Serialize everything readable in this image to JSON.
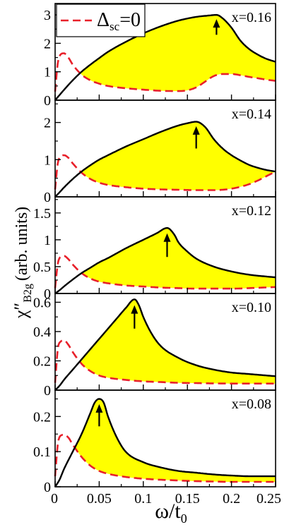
{
  "chart_data": {
    "type": "line",
    "ylabel_main": "χ″",
    "ylabel_sub": "B2g",
    "ylabel_units": "(arb. units)",
    "xlabel_main": "ω/t",
    "xlabel_sub": "0",
    "xlim": [
      0,
      0.25
    ],
    "x_ticks": [
      0,
      0.05,
      0.1,
      0.15,
      0.2,
      0.25
    ],
    "x_tick_labels": [
      "0",
      "0.05",
      "0.1",
      "0.15",
      "0.2",
      "0.25"
    ],
    "legend": {
      "placement": "top-left",
      "label_main": "Δ",
      "label_sub": "sc",
      "label_tail": "=0"
    },
    "colors": {
      "sc": "#000000",
      "normal": "#e8202a",
      "fill": "#ffff00"
    },
    "panels": [
      {
        "label": "x=0.16",
        "ylim": [
          0,
          3.4
        ],
        "y_ticks": [
          0,
          1,
          2,
          3
        ],
        "y_tick_labels": [
          "0",
          "1",
          "2",
          "3"
        ],
        "peak": [
          0.183,
          3.0
        ],
        "arrow": {
          "x": 0.183,
          "y_top": 2.85,
          "y_bottom": 2.3
        },
        "series": [
          {
            "name": "sc",
            "x": [
              0,
              0.005,
              0.01,
              0.02,
              0.03,
              0.04,
              0.05,
              0.06,
              0.08,
              0.1,
              0.12,
              0.14,
              0.16,
              0.175,
              0.183,
              0.19,
              0.2,
              0.21,
              0.22,
              0.23,
              0.24,
              0.25
            ],
            "y": [
              0,
              0.18,
              0.36,
              0.7,
              1.0,
              1.25,
              1.48,
              1.7,
              2.05,
              2.35,
              2.6,
              2.8,
              2.93,
              2.98,
              3.0,
              2.88,
              2.55,
              2.1,
              1.8,
              1.6,
              1.45,
              1.35
            ]
          },
          {
            "name": "Δsc=0",
            "x": [
              0,
              0.003,
              0.006,
              0.01,
              0.015,
              0.02,
              0.03,
              0.04,
              0.05,
              0.06,
              0.08,
              0.1,
              0.12,
              0.14,
              0.15,
              0.16,
              0.17,
              0.18,
              0.19,
              0.2,
              0.21,
              0.22,
              0.23,
              0.24,
              0.25
            ],
            "y": [
              0.3,
              1.3,
              1.6,
              1.65,
              1.5,
              1.25,
              0.9,
              0.7,
              0.58,
              0.5,
              0.42,
              0.37,
              0.33,
              0.32,
              0.35,
              0.45,
              0.65,
              0.85,
              0.92,
              0.92,
              0.88,
              0.82,
              0.77,
              0.72,
              0.68
            ]
          }
        ]
      },
      {
        "label": "x=0.14",
        "ylim": [
          0,
          2.6
        ],
        "y_ticks": [
          0,
          1,
          2
        ],
        "y_tick_labels": [
          "0",
          "1",
          "2"
        ],
        "peak": [
          0.16,
          2.02
        ],
        "arrow": {
          "x": 0.16,
          "y_top": 1.9,
          "y_bottom": 1.3
        },
        "series": [
          {
            "name": "sc",
            "x": [
              0,
              0.005,
              0.01,
              0.02,
              0.03,
              0.04,
              0.05,
              0.06,
              0.08,
              0.1,
              0.12,
              0.14,
              0.15,
              0.16,
              0.17,
              0.18,
              0.19,
              0.2,
              0.21,
              0.22,
              0.23,
              0.24,
              0.25
            ],
            "y": [
              0,
              0.12,
              0.25,
              0.48,
              0.68,
              0.85,
              1.0,
              1.12,
              1.35,
              1.55,
              1.75,
              1.92,
              1.98,
              2.02,
              1.88,
              1.55,
              1.3,
              1.12,
              0.98,
              0.86,
              0.78,
              0.72,
              0.68
            ]
          },
          {
            "name": "Δsc=0",
            "x": [
              0,
              0.003,
              0.006,
              0.01,
              0.015,
              0.02,
              0.03,
              0.04,
              0.05,
              0.06,
              0.08,
              0.1,
              0.12,
              0.14,
              0.16,
              0.18,
              0.19,
              0.2,
              0.21,
              0.22,
              0.23,
              0.24,
              0.25
            ],
            "y": [
              0.2,
              0.9,
              1.08,
              1.12,
              1.05,
              0.9,
              0.65,
              0.48,
              0.38,
              0.32,
              0.26,
              0.22,
              0.2,
              0.19,
              0.18,
              0.18,
              0.19,
              0.22,
              0.27,
              0.34,
              0.44,
              0.56,
              0.68
            ]
          }
        ]
      },
      {
        "label": "x=0.12",
        "ylim": [
          0,
          1.8
        ],
        "y_ticks": [
          0,
          0.5,
          1,
          1.5
        ],
        "y_tick_labels": [
          "0",
          "0.5",
          "1",
          "1.5"
        ],
        "peak": [
          0.127,
          1.22
        ],
        "arrow": {
          "x": 0.127,
          "y_top": 1.12,
          "y_bottom": 0.68
        },
        "series": [
          {
            "name": "sc",
            "x": [
              0,
              0.005,
              0.01,
              0.02,
              0.03,
              0.04,
              0.05,
              0.06,
              0.08,
              0.1,
              0.115,
              0.127,
              0.135,
              0.14,
              0.15,
              0.16,
              0.18,
              0.2,
              0.22,
              0.25
            ],
            "y": [
              0,
              0.06,
              0.13,
              0.26,
              0.38,
              0.48,
              0.58,
              0.66,
              0.84,
              1.0,
              1.12,
              1.22,
              1.1,
              0.95,
              0.78,
              0.65,
              0.5,
              0.41,
              0.35,
              0.3
            ]
          },
          {
            "name": "Δsc=0",
            "x": [
              0,
              0.003,
              0.006,
              0.01,
              0.015,
              0.02,
              0.03,
              0.04,
              0.05,
              0.06,
              0.08,
              0.1,
              0.12,
              0.14,
              0.16,
              0.18,
              0.2,
              0.22,
              0.25
            ],
            "y": [
              0.1,
              0.55,
              0.68,
              0.7,
              0.64,
              0.54,
              0.38,
              0.28,
              0.22,
              0.19,
              0.15,
              0.13,
              0.11,
              0.1,
              0.09,
              0.09,
              0.09,
              0.1,
              0.12
            ]
          }
        ]
      },
      {
        "label": "x=0.10",
        "ylim": [
          0,
          0.66
        ],
        "y_ticks": [
          0,
          0.2,
          0.4,
          0.6
        ],
        "y_tick_labels": [
          "0",
          "0.2",
          "0.4",
          "0.6"
        ],
        "peak": [
          0.09,
          0.62
        ],
        "arrow": {
          "x": 0.09,
          "y_top": 0.58,
          "y_bottom": 0.42
        },
        "series": [
          {
            "name": "sc",
            "x": [
              0,
              0.005,
              0.01,
              0.02,
              0.03,
              0.04,
              0.05,
              0.06,
              0.07,
              0.08,
              0.09,
              0.095,
              0.1,
              0.11,
              0.12,
              0.14,
              0.16,
              0.18,
              0.2,
              0.22,
              0.25
            ],
            "y": [
              0,
              0.03,
              0.07,
              0.14,
              0.21,
              0.28,
              0.35,
              0.42,
              0.49,
              0.56,
              0.62,
              0.58,
              0.5,
              0.38,
              0.3,
              0.22,
              0.17,
              0.14,
              0.12,
              0.11,
              0.095
            ]
          },
          {
            "name": "Δsc=0",
            "x": [
              0,
              0.003,
              0.006,
              0.01,
              0.015,
              0.02,
              0.03,
              0.04,
              0.05,
              0.06,
              0.08,
              0.1,
              0.12,
              0.14,
              0.16,
              0.18,
              0.2,
              0.22,
              0.25
            ],
            "y": [
              0.05,
              0.28,
              0.33,
              0.34,
              0.31,
              0.26,
              0.18,
              0.13,
              0.1,
              0.085,
              0.07,
              0.06,
              0.055,
              0.05,
              0.048,
              0.046,
              0.045,
              0.045,
              0.045
            ]
          }
        ]
      },
      {
        "label": "x=0.08",
        "ylim": [
          0,
          0.275
        ],
        "y_ticks": [
          0,
          0.1,
          0.2
        ],
        "y_tick_labels": [
          "0",
          "0.1",
          "0.2"
        ],
        "peak": [
          0.05,
          0.25
        ],
        "arrow": {
          "x": 0.05,
          "y_top": 0.235,
          "y_bottom": 0.172
        },
        "series": [
          {
            "name": "sc",
            "x": [
              0,
              0.005,
              0.01,
              0.02,
              0.03,
              0.04,
              0.045,
              0.05,
              0.055,
              0.06,
              0.07,
              0.08,
              0.1,
              0.12,
              0.14,
              0.16,
              0.18,
              0.2,
              0.22,
              0.25
            ],
            "y": [
              0,
              0.02,
              0.05,
              0.1,
              0.15,
              0.21,
              0.24,
              0.25,
              0.24,
              0.2,
              0.14,
              0.1,
              0.07,
              0.055,
              0.045,
              0.04,
              0.035,
              0.032,
              0.03,
              0.03
            ]
          },
          {
            "name": "Δsc=0",
            "x": [
              0,
              0.003,
              0.006,
              0.01,
              0.015,
              0.02,
              0.03,
              0.04,
              0.05,
              0.06,
              0.08,
              0.1,
              0.12,
              0.14,
              0.16,
              0.18,
              0.2,
              0.22,
              0.25
            ],
            "y": [
              0.03,
              0.12,
              0.145,
              0.148,
              0.14,
              0.12,
              0.085,
              0.06,
              0.045,
              0.037,
              0.028,
              0.023,
              0.02,
              0.018,
              0.016,
              0.015,
              0.014,
              0.014,
              0.014
            ]
          }
        ]
      }
    ]
  }
}
